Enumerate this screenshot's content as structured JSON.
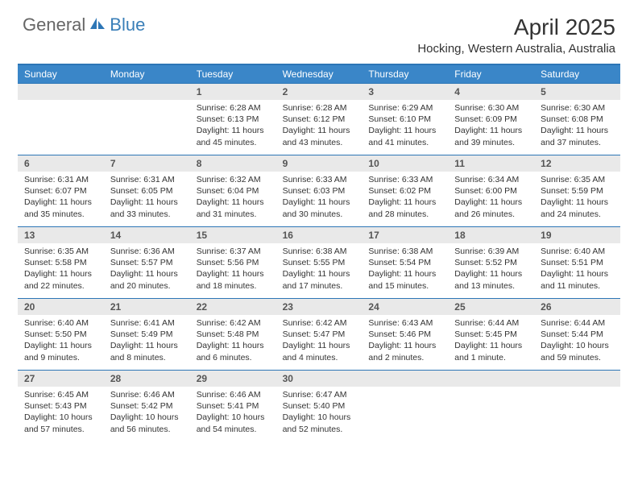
{
  "logo": {
    "text1": "General",
    "text2": "Blue"
  },
  "title": "April 2025",
  "location": "Hocking, Western Australia, Australia",
  "colors": {
    "header_bg": "#3a86c8",
    "header_border": "#2d76b6",
    "daynum_bg": "#e9e9e9",
    "text": "#333333",
    "logo_gray": "#666666",
    "logo_blue": "#3a7fb8"
  },
  "day_labels": [
    "Sunday",
    "Monday",
    "Tuesday",
    "Wednesday",
    "Thursday",
    "Friday",
    "Saturday"
  ],
  "weeks": [
    [
      {
        "n": "",
        "sr": "",
        "ss": "",
        "dl": ""
      },
      {
        "n": "",
        "sr": "",
        "ss": "",
        "dl": ""
      },
      {
        "n": "1",
        "sr": "Sunrise: 6:28 AM",
        "ss": "Sunset: 6:13 PM",
        "dl": "Daylight: 11 hours and 45 minutes."
      },
      {
        "n": "2",
        "sr": "Sunrise: 6:28 AM",
        "ss": "Sunset: 6:12 PM",
        "dl": "Daylight: 11 hours and 43 minutes."
      },
      {
        "n": "3",
        "sr": "Sunrise: 6:29 AM",
        "ss": "Sunset: 6:10 PM",
        "dl": "Daylight: 11 hours and 41 minutes."
      },
      {
        "n": "4",
        "sr": "Sunrise: 6:30 AM",
        "ss": "Sunset: 6:09 PM",
        "dl": "Daylight: 11 hours and 39 minutes."
      },
      {
        "n": "5",
        "sr": "Sunrise: 6:30 AM",
        "ss": "Sunset: 6:08 PM",
        "dl": "Daylight: 11 hours and 37 minutes."
      }
    ],
    [
      {
        "n": "6",
        "sr": "Sunrise: 6:31 AM",
        "ss": "Sunset: 6:07 PM",
        "dl": "Daylight: 11 hours and 35 minutes."
      },
      {
        "n": "7",
        "sr": "Sunrise: 6:31 AM",
        "ss": "Sunset: 6:05 PM",
        "dl": "Daylight: 11 hours and 33 minutes."
      },
      {
        "n": "8",
        "sr": "Sunrise: 6:32 AM",
        "ss": "Sunset: 6:04 PM",
        "dl": "Daylight: 11 hours and 31 minutes."
      },
      {
        "n": "9",
        "sr": "Sunrise: 6:33 AM",
        "ss": "Sunset: 6:03 PM",
        "dl": "Daylight: 11 hours and 30 minutes."
      },
      {
        "n": "10",
        "sr": "Sunrise: 6:33 AM",
        "ss": "Sunset: 6:02 PM",
        "dl": "Daylight: 11 hours and 28 minutes."
      },
      {
        "n": "11",
        "sr": "Sunrise: 6:34 AM",
        "ss": "Sunset: 6:00 PM",
        "dl": "Daylight: 11 hours and 26 minutes."
      },
      {
        "n": "12",
        "sr": "Sunrise: 6:35 AM",
        "ss": "Sunset: 5:59 PM",
        "dl": "Daylight: 11 hours and 24 minutes."
      }
    ],
    [
      {
        "n": "13",
        "sr": "Sunrise: 6:35 AM",
        "ss": "Sunset: 5:58 PM",
        "dl": "Daylight: 11 hours and 22 minutes."
      },
      {
        "n": "14",
        "sr": "Sunrise: 6:36 AM",
        "ss": "Sunset: 5:57 PM",
        "dl": "Daylight: 11 hours and 20 minutes."
      },
      {
        "n": "15",
        "sr": "Sunrise: 6:37 AM",
        "ss": "Sunset: 5:56 PM",
        "dl": "Daylight: 11 hours and 18 minutes."
      },
      {
        "n": "16",
        "sr": "Sunrise: 6:38 AM",
        "ss": "Sunset: 5:55 PM",
        "dl": "Daylight: 11 hours and 17 minutes."
      },
      {
        "n": "17",
        "sr": "Sunrise: 6:38 AM",
        "ss": "Sunset: 5:54 PM",
        "dl": "Daylight: 11 hours and 15 minutes."
      },
      {
        "n": "18",
        "sr": "Sunrise: 6:39 AM",
        "ss": "Sunset: 5:52 PM",
        "dl": "Daylight: 11 hours and 13 minutes."
      },
      {
        "n": "19",
        "sr": "Sunrise: 6:40 AM",
        "ss": "Sunset: 5:51 PM",
        "dl": "Daylight: 11 hours and 11 minutes."
      }
    ],
    [
      {
        "n": "20",
        "sr": "Sunrise: 6:40 AM",
        "ss": "Sunset: 5:50 PM",
        "dl": "Daylight: 11 hours and 9 minutes."
      },
      {
        "n": "21",
        "sr": "Sunrise: 6:41 AM",
        "ss": "Sunset: 5:49 PM",
        "dl": "Daylight: 11 hours and 8 minutes."
      },
      {
        "n": "22",
        "sr": "Sunrise: 6:42 AM",
        "ss": "Sunset: 5:48 PM",
        "dl": "Daylight: 11 hours and 6 minutes."
      },
      {
        "n": "23",
        "sr": "Sunrise: 6:42 AM",
        "ss": "Sunset: 5:47 PM",
        "dl": "Daylight: 11 hours and 4 minutes."
      },
      {
        "n": "24",
        "sr": "Sunrise: 6:43 AM",
        "ss": "Sunset: 5:46 PM",
        "dl": "Daylight: 11 hours and 2 minutes."
      },
      {
        "n": "25",
        "sr": "Sunrise: 6:44 AM",
        "ss": "Sunset: 5:45 PM",
        "dl": "Daylight: 11 hours and 1 minute."
      },
      {
        "n": "26",
        "sr": "Sunrise: 6:44 AM",
        "ss": "Sunset: 5:44 PM",
        "dl": "Daylight: 10 hours and 59 minutes."
      }
    ],
    [
      {
        "n": "27",
        "sr": "Sunrise: 6:45 AM",
        "ss": "Sunset: 5:43 PM",
        "dl": "Daylight: 10 hours and 57 minutes."
      },
      {
        "n": "28",
        "sr": "Sunrise: 6:46 AM",
        "ss": "Sunset: 5:42 PM",
        "dl": "Daylight: 10 hours and 56 minutes."
      },
      {
        "n": "29",
        "sr": "Sunrise: 6:46 AM",
        "ss": "Sunset: 5:41 PM",
        "dl": "Daylight: 10 hours and 54 minutes."
      },
      {
        "n": "30",
        "sr": "Sunrise: 6:47 AM",
        "ss": "Sunset: 5:40 PM",
        "dl": "Daylight: 10 hours and 52 minutes."
      },
      {
        "n": "",
        "sr": "",
        "ss": "",
        "dl": ""
      },
      {
        "n": "",
        "sr": "",
        "ss": "",
        "dl": ""
      },
      {
        "n": "",
        "sr": "",
        "ss": "",
        "dl": ""
      }
    ]
  ]
}
